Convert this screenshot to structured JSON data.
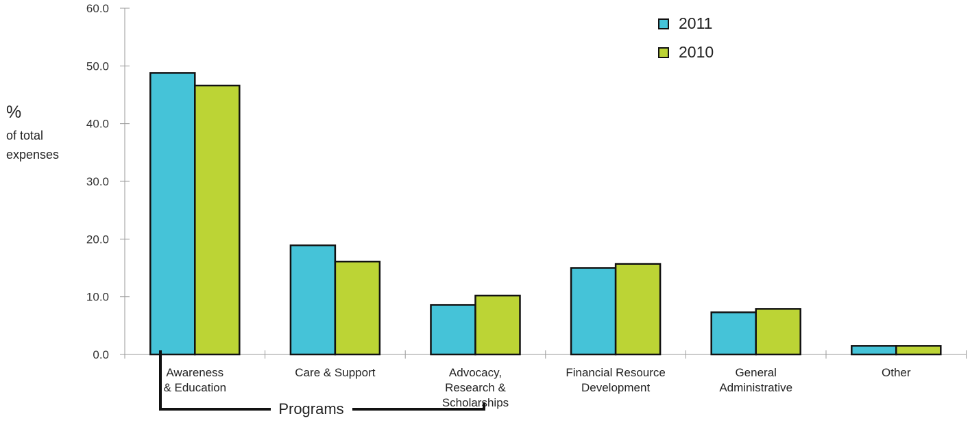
{
  "chart_data": {
    "type": "bar",
    "categories": [
      [
        "Awareness",
        "& Education"
      ],
      [
        "Care & Support"
      ],
      [
        "Advocacy,",
        "Research &",
        "Scholarships"
      ],
      [
        "Financial Resource",
        "Development"
      ],
      [
        "General",
        "Administrative"
      ],
      [
        "Other"
      ]
    ],
    "series": [
      {
        "name": "2011",
        "color": "#45c3d8",
        "values": [
          48.8,
          18.9,
          8.6,
          15.0,
          7.3,
          1.5
        ]
      },
      {
        "name": "2010",
        "color": "#bcd435",
        "values": [
          46.6,
          16.1,
          10.2,
          15.7,
          7.9,
          1.5
        ]
      }
    ],
    "ylabel": {
      "symbol": "%",
      "lines": [
        "of total",
        "expenses"
      ]
    },
    "yticks": [
      "0.0",
      "10.0",
      "20.0",
      "30.0",
      "40.0",
      "50.0",
      "60.0"
    ],
    "ylim": [
      0,
      60
    ],
    "group_annotation": "Programs",
    "legend_position": "top-right",
    "grid": false
  }
}
